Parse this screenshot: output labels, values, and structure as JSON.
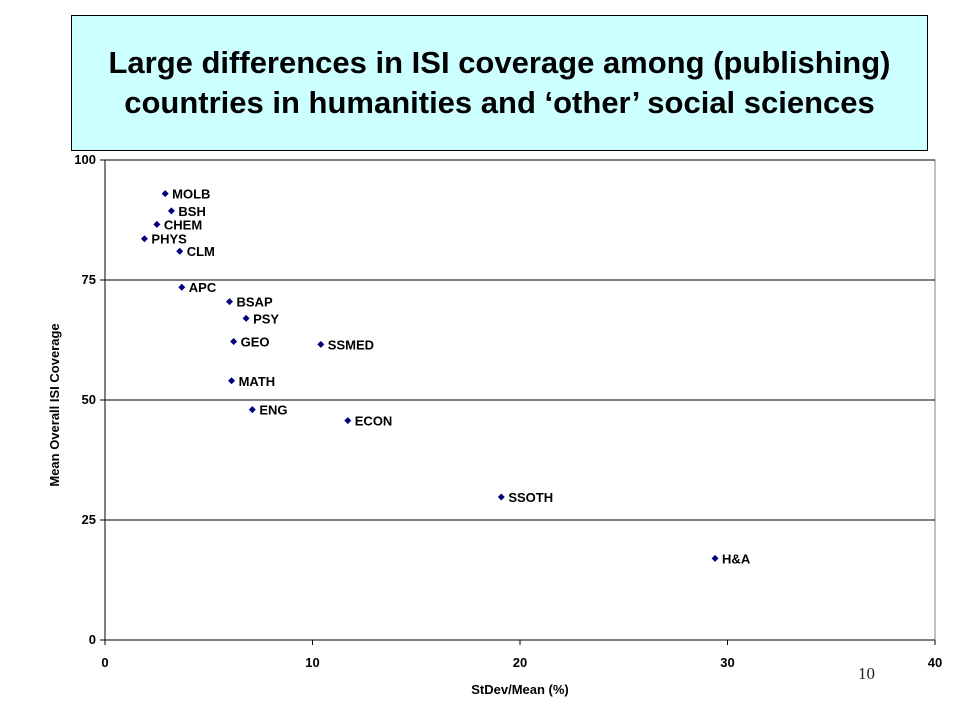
{
  "slide": {
    "title": "Large differences in ISI coverage among (publishing) countries in humanities and ‘other’ social sciences",
    "page_number": "10"
  },
  "colors": {
    "title_background": "#ccffff",
    "marker": "#00007f",
    "gridline": "#000000"
  },
  "chart_data": {
    "type": "scatter",
    "title": "",
    "xlabel": "StDev/Mean (%)",
    "ylabel": "Mean Overall ISI Coverage",
    "xlim": [
      0,
      40
    ],
    "ylim": [
      0,
      100
    ],
    "x_ticks": [
      0,
      10,
      20,
      30,
      40
    ],
    "y_ticks": [
      0,
      25,
      50,
      75,
      100
    ],
    "grid": "horizontal",
    "legend": "none",
    "points": [
      {
        "label": "MOLB",
        "x": 2.9,
        "y": 93.0
      },
      {
        "label": "BSH",
        "x": 3.2,
        "y": 89.4
      },
      {
        "label": "CHEM",
        "x": 2.5,
        "y": 86.6
      },
      {
        "label": "PHYS",
        "x": 1.9,
        "y": 83.6
      },
      {
        "label": "CLM",
        "x": 3.6,
        "y": 81.0
      },
      {
        "label": "APC",
        "x": 3.7,
        "y": 73.5
      },
      {
        "label": "BSAP",
        "x": 6.0,
        "y": 70.5
      },
      {
        "label": "PSY",
        "x": 6.8,
        "y": 67.0
      },
      {
        "label": "GEO",
        "x": 6.2,
        "y": 62.2
      },
      {
        "label": "SSMED",
        "x": 10.4,
        "y": 61.6
      },
      {
        "label": "MATH",
        "x": 6.1,
        "y": 54.0
      },
      {
        "label": "ENG",
        "x": 7.1,
        "y": 48.0
      },
      {
        "label": "ECON",
        "x": 11.7,
        "y": 45.7
      },
      {
        "label": "SSOTH",
        "x": 19.1,
        "y": 29.8
      },
      {
        "label": "H&A",
        "x": 29.4,
        "y": 17.0
      }
    ]
  }
}
